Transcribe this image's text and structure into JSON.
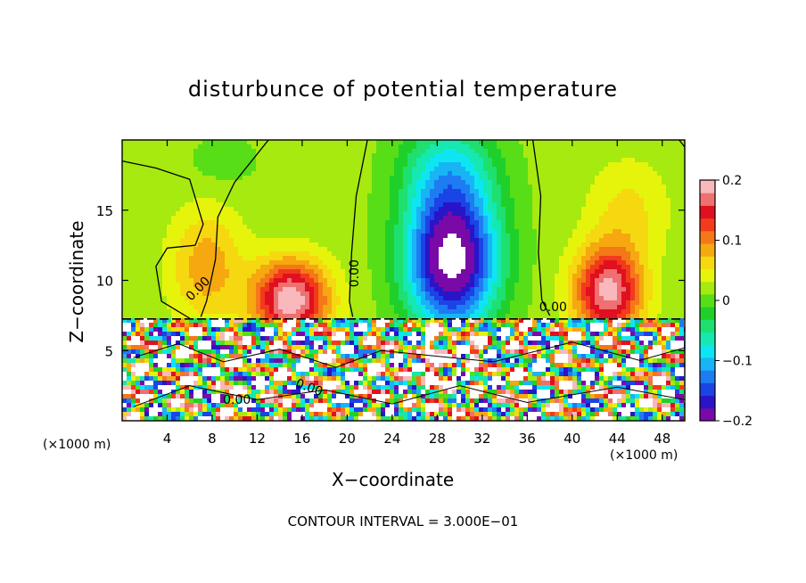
{
  "chart_data": {
    "type": "heatmap",
    "title": "disturbunce of potential temperature",
    "xlabel": "X−coordinate",
    "ylabel": "Z−coordinate",
    "x_unit_label": "(×1000 m)",
    "xlim": [
      0,
      50
    ],
    "ylim": [
      0,
      20
    ],
    "x_ticks": [
      4,
      8,
      12,
      16,
      20,
      24,
      28,
      32,
      36,
      40,
      44,
      48
    ],
    "y_ticks": [
      5,
      10,
      15
    ],
    "colorbar": {
      "range": [
        -0.2,
        0.2
      ],
      "ticks": [
        0.2,
        0.1,
        0,
        -0.1,
        -0.2
      ],
      "tick_labels": [
        "0.2",
        "0.1",
        "0",
        "−0.1",
        "−0.2"
      ],
      "colors": [
        "#7a0aa8",
        "#2a14c8",
        "#1a44e6",
        "#1e7cf2",
        "#19b4f5",
        "#0de6f2",
        "#15e8b0",
        "#1ee070",
        "#20d02a",
        "#58de16",
        "#a6ea10",
        "#e6f40c",
        "#f6d810",
        "#f6a810",
        "#f47818",
        "#f23a1c",
        "#e01020",
        "#ee7070",
        "#f8b8bc"
      ]
    },
    "contour_labels": [
      "0.00",
      "0.00",
      "0.00",
      "0.00",
      "0.00"
    ],
    "contour_interval": "CONTOUR INTERVAL = 3.000E−01",
    "features": [
      {
        "kind": "negative-anomaly",
        "x": 29,
        "z": 12,
        "value": -0.2
      },
      {
        "kind": "positive-anomaly",
        "x": 15,
        "z": 9,
        "value": 0.17
      },
      {
        "kind": "positive-anomaly",
        "x": 43,
        "z": 9.5,
        "value": 0.17
      },
      {
        "kind": "positive-anomaly",
        "x": 7,
        "z": 11,
        "value": 0.05
      },
      {
        "kind": "tropopause-boundary",
        "z": 7.2
      }
    ]
  }
}
